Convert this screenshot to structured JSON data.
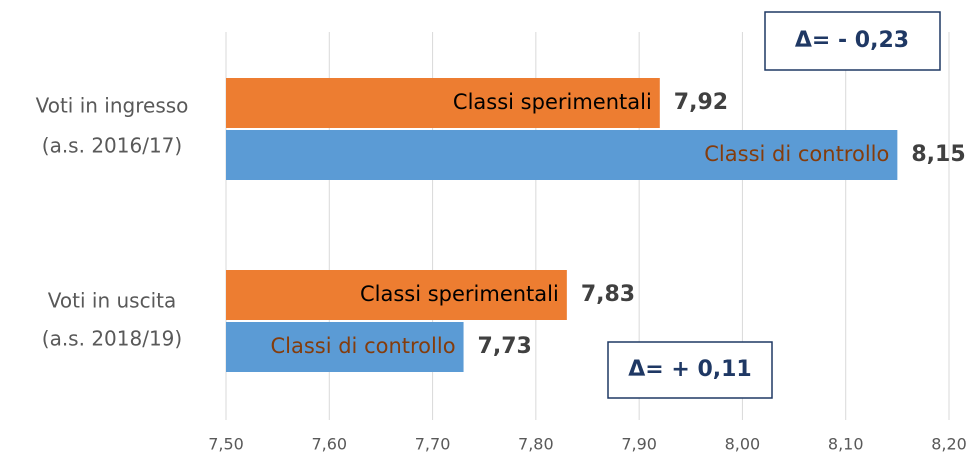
{
  "chart_data": {
    "type": "bar",
    "orientation": "horizontal",
    "categories": [
      [
        "Voti in ingresso",
        "(a.s. 2016/17)"
      ],
      [
        "Voti in uscita",
        "(a.s. 2018/19)"
      ]
    ],
    "series": [
      {
        "name": "Classi sperimentali",
        "color": "#ed7d31",
        "values": [
          7.92,
          7.83
        ],
        "value_labels": [
          "7,92",
          "7,83"
        ]
      },
      {
        "name": "Classi di controllo",
        "color": "#5b9bd5",
        "values": [
          8.15,
          7.73
        ],
        "value_labels": [
          "8,15",
          "7,73"
        ]
      }
    ],
    "xlim": [
      7.5,
      8.2
    ],
    "xticks": [
      {
        "value": 7.5,
        "label": "7,50"
      },
      {
        "value": 7.6,
        "label": "7,60"
      },
      {
        "value": 7.7,
        "label": "7,70"
      },
      {
        "value": 7.8,
        "label": "7,80"
      },
      {
        "value": 7.9,
        "label": "7,90"
      },
      {
        "value": 8.0,
        "label": "8,00"
      },
      {
        "value": 8.1,
        "label": "8,10"
      },
      {
        "value": 8.2,
        "label": "8,20"
      }
    ],
    "grid": true,
    "annotations": [
      "Δ= - 0,23",
      "Δ= + 0,11"
    ]
  }
}
